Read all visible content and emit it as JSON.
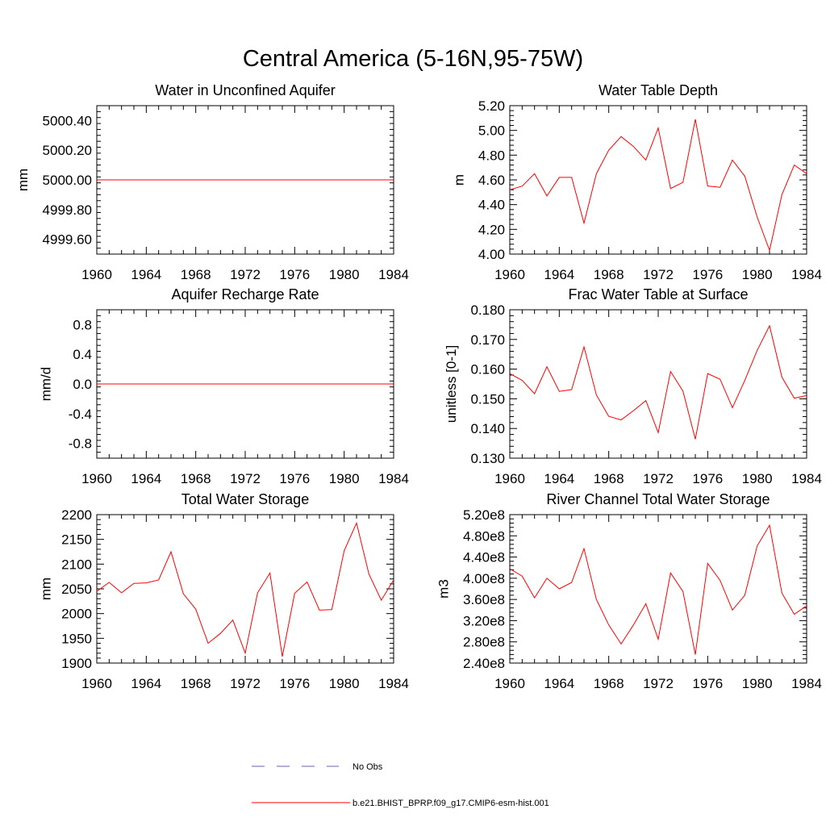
{
  "figure": {
    "title": "Central America (5-16N,95-75W)"
  },
  "colors": {
    "model": "#ff0000",
    "obs": "#6666aa",
    "axis": "#000000"
  },
  "legend": {
    "entries": [
      {
        "label": "No Obs",
        "style": "dashed",
        "color": "#6666aa"
      },
      {
        "label": "b.e21.BHIST_BPRP.f09_g17.CMIP6-esm-hist.001",
        "style": "solid",
        "color": "#ff0000"
      }
    ]
  },
  "chart_data": [
    {
      "type": "line",
      "title": "Water in Unconfined Aquifer",
      "ylabel": "mm",
      "xlim": [
        1960,
        1984
      ],
      "ylim": [
        4999.5,
        5000.5
      ],
      "xticks": [
        "1960",
        "1964",
        "1968",
        "1972",
        "1976",
        "1980",
        "1984"
      ],
      "yticks": [
        {
          "value": 4999.6,
          "label": "4999.60"
        },
        {
          "value": 4999.8,
          "label": "4999.80"
        },
        {
          "value": 5000.0,
          "label": "5000.00"
        },
        {
          "value": 5000.2,
          "label": "5000.20"
        },
        {
          "value": 5000.4,
          "label": "5000.40"
        }
      ],
      "x": [
        1960,
        1961,
        1962,
        1963,
        1964,
        1965,
        1966,
        1967,
        1968,
        1969,
        1970,
        1971,
        1972,
        1973,
        1974,
        1975,
        1976,
        1977,
        1978,
        1979,
        1980,
        1981,
        1982,
        1983,
        1984
      ],
      "values": [
        5000,
        5000,
        5000,
        5000,
        5000,
        5000,
        5000,
        5000,
        5000,
        5000,
        5000,
        5000,
        5000,
        5000,
        5000,
        5000,
        5000,
        5000,
        5000,
        5000,
        5000,
        5000,
        5000,
        5000,
        5000
      ]
    },
    {
      "type": "line",
      "title": "Water Table Depth",
      "ylabel": "m",
      "xlim": [
        1960,
        1984
      ],
      "ylim": [
        4.0,
        5.2
      ],
      "xticks": [
        "1960",
        "1964",
        "1968",
        "1972",
        "1976",
        "1980",
        "1984"
      ],
      "yticks": [
        {
          "value": 4.0,
          "label": "4.00"
        },
        {
          "value": 4.2,
          "label": "4.20"
        },
        {
          "value": 4.4,
          "label": "4.40"
        },
        {
          "value": 4.6,
          "label": "4.60"
        },
        {
          "value": 4.8,
          "label": "4.80"
        },
        {
          "value": 5.0,
          "label": "5.00"
        },
        {
          "value": 5.2,
          "label": "5.20"
        }
      ],
      "x": [
        1960,
        1961,
        1962,
        1963,
        1964,
        1965,
        1966,
        1967,
        1968,
        1969,
        1970,
        1971,
        1972,
        1973,
        1974,
        1975,
        1976,
        1977,
        1978,
        1979,
        1980,
        1981,
        1982,
        1983,
        1984
      ],
      "values": [
        4.52,
        4.55,
        4.65,
        4.47,
        4.62,
        4.62,
        4.25,
        4.65,
        4.84,
        4.95,
        4.87,
        4.76,
        5.02,
        4.53,
        4.58,
        5.09,
        4.55,
        4.54,
        4.76,
        4.63,
        4.3,
        4.03,
        4.48,
        4.72,
        4.65
      ]
    },
    {
      "type": "line",
      "title": "Aquifer Recharge Rate",
      "ylabel": "mm/d",
      "xlim": [
        1960,
        1984
      ],
      "ylim": [
        -1.0,
        1.0
      ],
      "xticks": [
        "1960",
        "1964",
        "1968",
        "1972",
        "1976",
        "1980",
        "1984"
      ],
      "yticks": [
        {
          "value": -0.8,
          "label": "-0.8"
        },
        {
          "value": -0.4,
          "label": "-0.4"
        },
        {
          "value": 0.0,
          "label": "0.0"
        },
        {
          "value": 0.4,
          "label": "0.4"
        },
        {
          "value": 0.8,
          "label": "0.8"
        }
      ],
      "x": [
        1960,
        1961,
        1962,
        1963,
        1964,
        1965,
        1966,
        1967,
        1968,
        1969,
        1970,
        1971,
        1972,
        1973,
        1974,
        1975,
        1976,
        1977,
        1978,
        1979,
        1980,
        1981,
        1982,
        1983,
        1984
      ],
      "values": [
        0,
        0,
        0,
        0,
        0,
        0,
        0,
        0,
        0,
        0,
        0,
        0,
        0,
        0,
        0,
        0,
        0,
        0,
        0,
        0,
        0,
        0,
        0,
        0,
        0
      ]
    },
    {
      "type": "line",
      "title": "Frac Water Table at Surface",
      "ylabel": "unitless [0-1]",
      "xlim": [
        1960,
        1984
      ],
      "ylim": [
        0.13,
        0.18
      ],
      "xticks": [
        "1960",
        "1964",
        "1968",
        "1972",
        "1976",
        "1980",
        "1984"
      ],
      "yticks": [
        {
          "value": 0.13,
          "label": "0.130"
        },
        {
          "value": 0.14,
          "label": "0.140"
        },
        {
          "value": 0.15,
          "label": "0.150"
        },
        {
          "value": 0.16,
          "label": "0.160"
        },
        {
          "value": 0.17,
          "label": "0.170"
        },
        {
          "value": 0.18,
          "label": "0.180"
        }
      ],
      "x": [
        1960,
        1961,
        1962,
        1963,
        1964,
        1965,
        1966,
        1967,
        1968,
        1969,
        1970,
        1971,
        1972,
        1973,
        1974,
        1975,
        1976,
        1977,
        1978,
        1979,
        1980,
        1981,
        1982,
        1983,
        1984
      ],
      "values": [
        0.1585,
        0.1562,
        0.1517,
        0.1608,
        0.1525,
        0.1531,
        0.1675,
        0.1513,
        0.1441,
        0.1429,
        0.146,
        0.1494,
        0.1386,
        0.1592,
        0.1526,
        0.1364,
        0.1585,
        0.1566,
        0.147,
        0.1562,
        0.1663,
        0.1746,
        0.1573,
        0.1502,
        0.1511
      ]
    },
    {
      "type": "line",
      "title": "Total Water Storage",
      "ylabel": "mm",
      "xlim": [
        1960,
        1984
      ],
      "ylim": [
        1900,
        2200
      ],
      "xticks": [
        "1960",
        "1964",
        "1968",
        "1972",
        "1976",
        "1980",
        "1984"
      ],
      "yticks": [
        {
          "value": 1900,
          "label": "1900"
        },
        {
          "value": 1950,
          "label": "1950"
        },
        {
          "value": 2000,
          "label": "2000"
        },
        {
          "value": 2050,
          "label": "2050"
        },
        {
          "value": 2100,
          "label": "2100"
        },
        {
          "value": 2150,
          "label": "2150"
        },
        {
          "value": 2200,
          "label": "2200"
        }
      ],
      "x": [
        1960,
        1961,
        1962,
        1963,
        1964,
        1965,
        1966,
        1967,
        1968,
        1969,
        1970,
        1971,
        1972,
        1973,
        1974,
        1975,
        1976,
        1977,
        1978,
        1979,
        1980,
        1981,
        1982,
        1983,
        1984
      ],
      "values": [
        2045,
        2063,
        2042,
        2061,
        2062,
        2068,
        2125,
        2040,
        2009,
        1940,
        1960,
        1987,
        1920,
        2042,
        2082,
        1913,
        2041,
        2064,
        2007,
        2008,
        2127,
        2183,
        2080,
        2027,
        2068
      ]
    },
    {
      "type": "line",
      "title": "River Channel Total Water Storage",
      "ylabel": "m3",
      "xlim": [
        1960,
        1984
      ],
      "ylim": [
        240000000,
        520000000
      ],
      "xticks": [
        "1960",
        "1964",
        "1968",
        "1972",
        "1976",
        "1980",
        "1984"
      ],
      "yticks": [
        {
          "value": 240000000,
          "label": "2.40e8"
        },
        {
          "value": 280000000,
          "label": "2.80e8"
        },
        {
          "value": 320000000,
          "label": "3.20e8"
        },
        {
          "value": 360000000,
          "label": "3.60e8"
        },
        {
          "value": 400000000,
          "label": "4.00e8"
        },
        {
          "value": 440000000,
          "label": "4.40e8"
        },
        {
          "value": 480000000,
          "label": "4.80e8"
        },
        {
          "value": 520000000,
          "label": "5.20e8"
        }
      ],
      "x": [
        1960,
        1961,
        1962,
        1963,
        1964,
        1965,
        1966,
        1967,
        1968,
        1969,
        1970,
        1971,
        1972,
        1973,
        1974,
        1975,
        1976,
        1977,
        1978,
        1979,
        1980,
        1981,
        1982,
        1983,
        1984
      ],
      "values": [
        418000000,
        404000000,
        363000000,
        400000000,
        380000000,
        392000000,
        456000000,
        360000000,
        312000000,
        276000000,
        312000000,
        352000000,
        285000000,
        410000000,
        375000000,
        256000000,
        428000000,
        396000000,
        340000000,
        368000000,
        461000000,
        500000000,
        372000000,
        332000000,
        348000000
      ]
    }
  ]
}
